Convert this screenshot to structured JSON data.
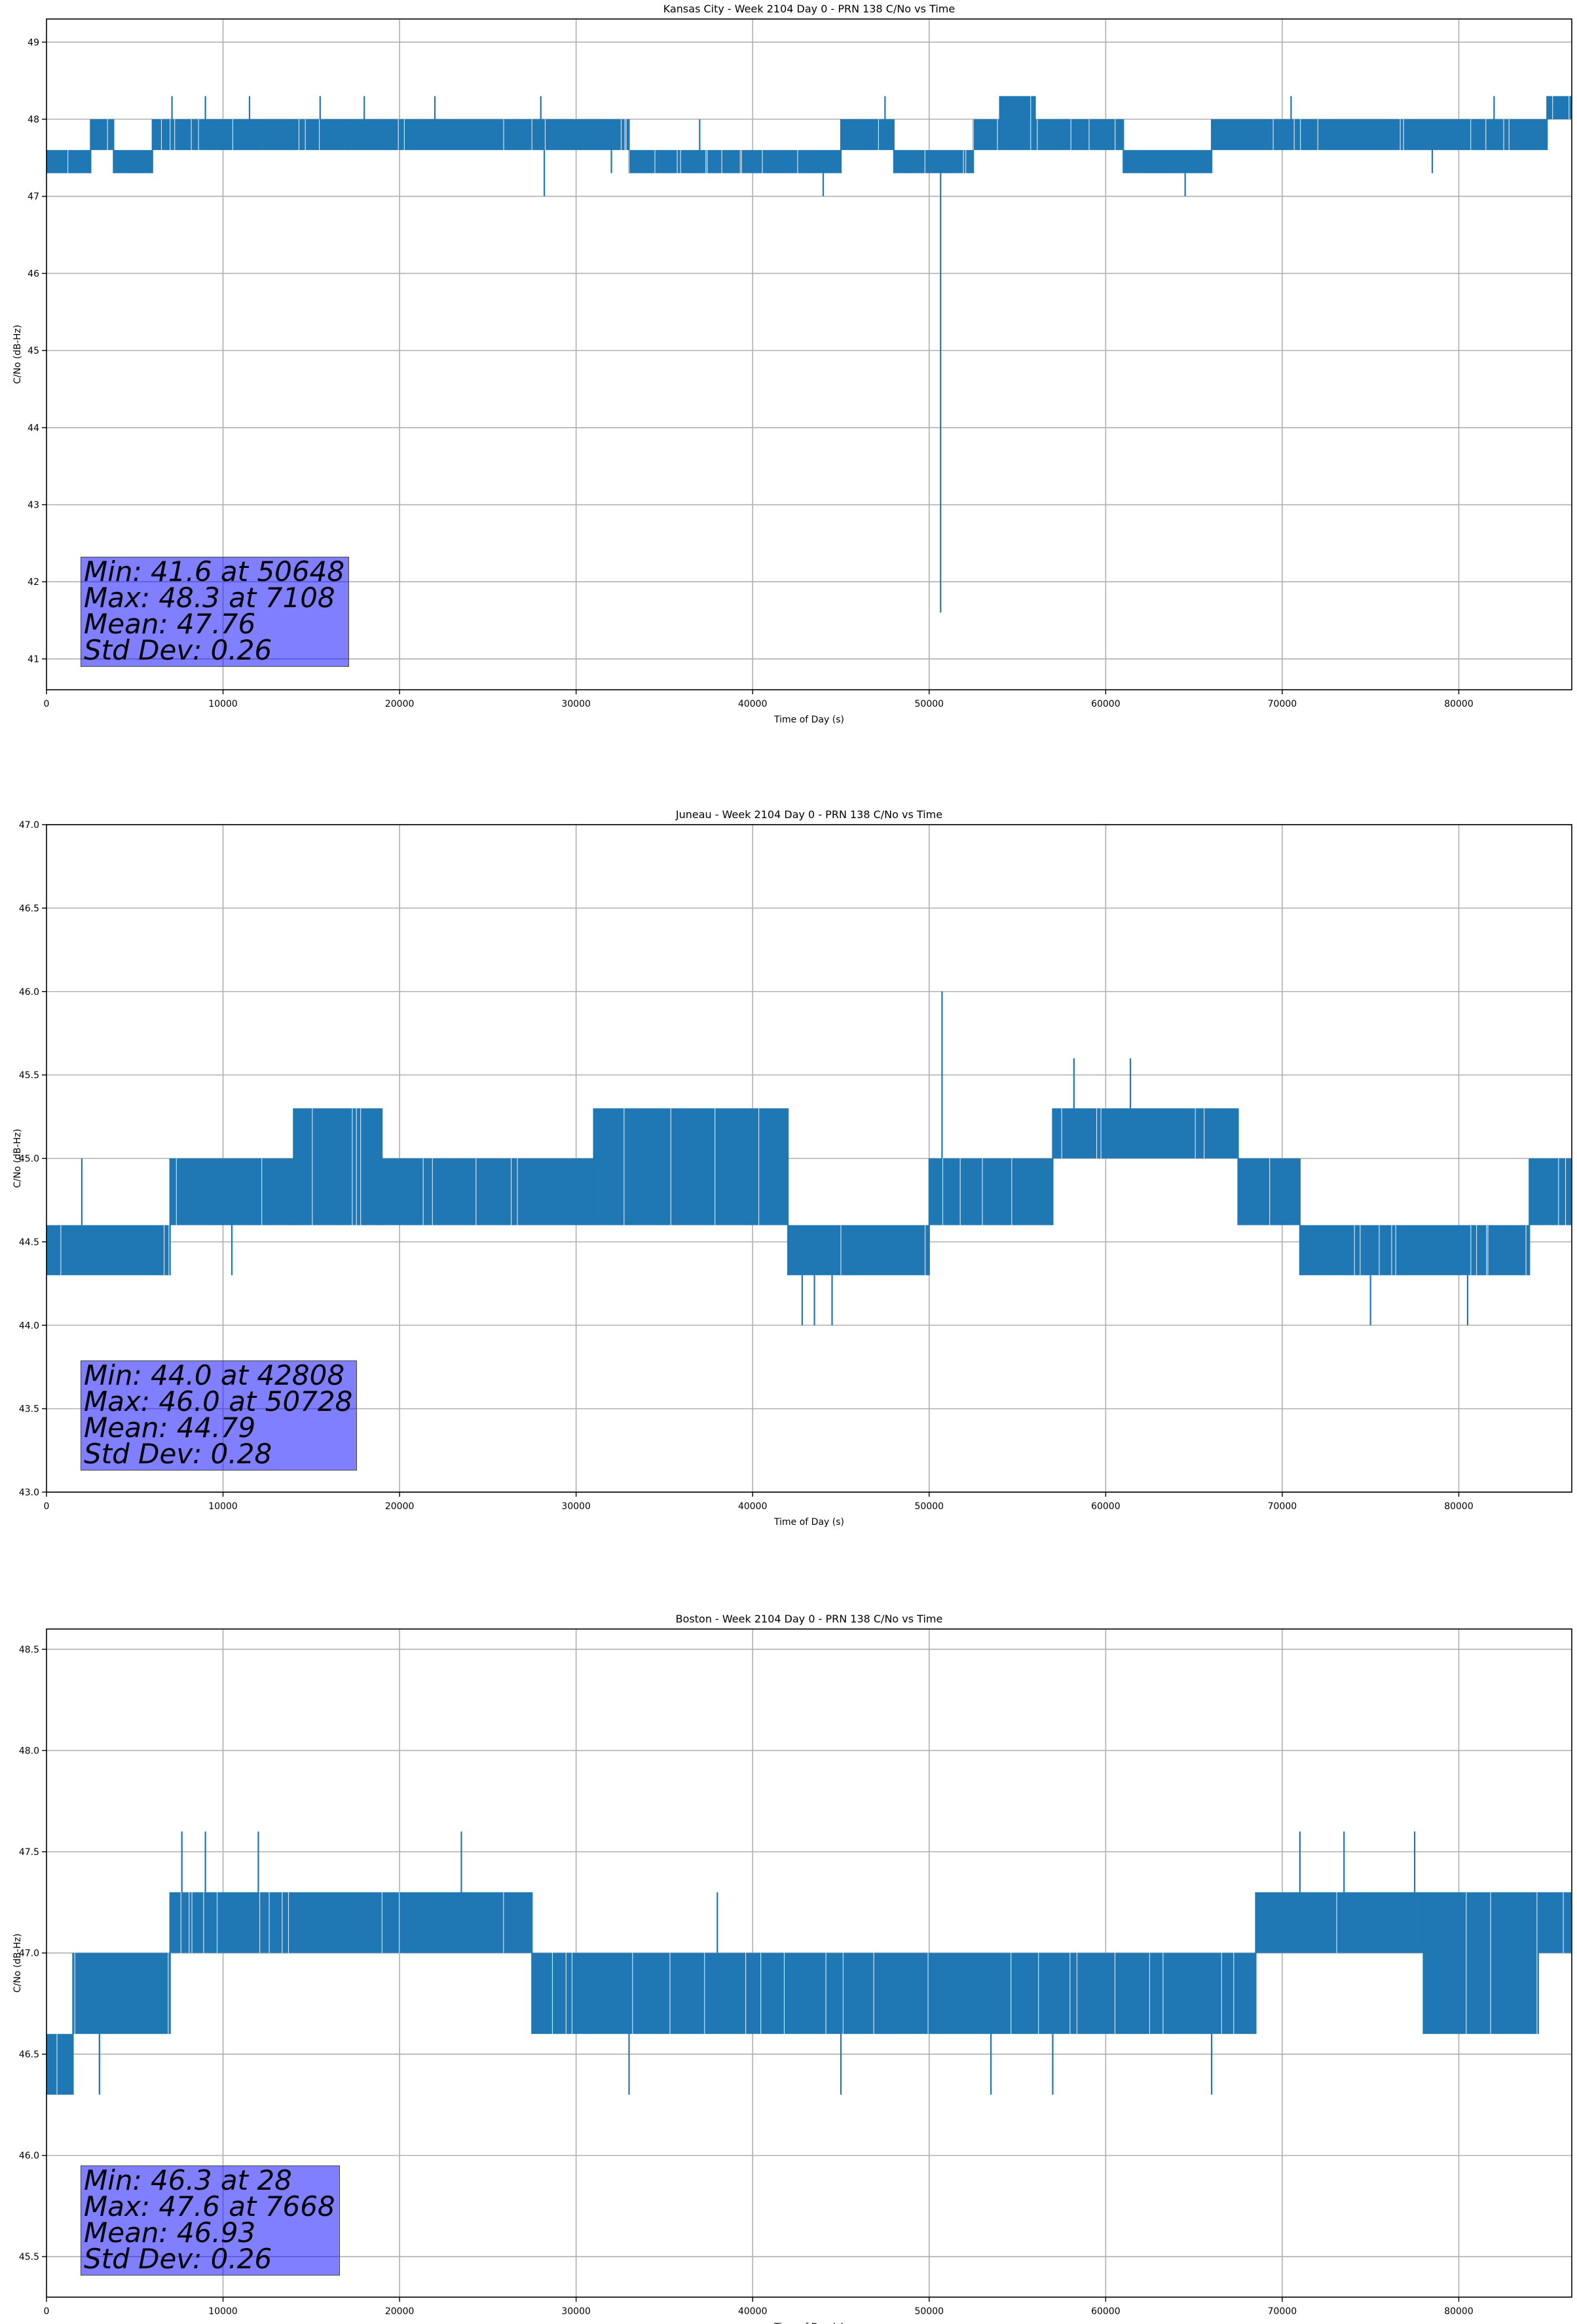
{
  "chart_data": [
    {
      "type": "line",
      "title": "Kansas City - Week 2104 Day 0 - PRN 138 C/No vs Time",
      "xlabel": "Time of Day (s)",
      "ylabel": "C/No (dB-Hz)",
      "xlim": [
        0,
        86400
      ],
      "ylim": [
        40.6,
        49.3
      ],
      "xticks": [
        0,
        10000,
        20000,
        30000,
        40000,
        50000,
        60000,
        70000,
        80000
      ],
      "xtick_labels": [
        "0",
        "10000",
        "20000",
        "30000",
        "40000",
        "50000",
        "60000",
        "70000",
        "80000"
      ],
      "yticks": [
        41,
        42,
        43,
        44,
        45,
        46,
        47,
        48,
        49
      ],
      "ytick_labels": [
        "41",
        "42",
        "43",
        "44",
        "45",
        "46",
        "47",
        "48",
        "49"
      ],
      "grid": true,
      "line_color": "#1f77b4",
      "series": [
        {
          "levels": [
            {
              "x": [
                0,
                2500
              ],
              "low": 47.3,
              "high": 47.6
            },
            {
              "x": [
                2500,
                3800
              ],
              "low": 47.6,
              "high": 48.0
            },
            {
              "x": [
                3800,
                6000
              ],
              "low": 47.3,
              "high": 47.6
            },
            {
              "x": [
                6000,
                7000
              ],
              "low": 47.6,
              "high": 48.0
            },
            {
              "x": [
                7000,
                12000
              ],
              "low": 47.6,
              "high": 48.0
            },
            {
              "x": [
                12000,
                17000
              ],
              "low": 47.6,
              "high": 48.0
            },
            {
              "x": [
                17000,
                33000
              ],
              "low": 47.6,
              "high": 48.0
            },
            {
              "x": [
                33000,
                45000
              ],
              "low": 47.3,
              "high": 47.6
            },
            {
              "x": [
                45000,
                48000
              ],
              "low": 47.6,
              "high": 48.0
            },
            {
              "x": [
                48000,
                52500
              ],
              "low": 47.3,
              "high": 47.6
            },
            {
              "x": [
                52500,
                54000
              ],
              "low": 47.6,
              "high": 48.0
            },
            {
              "x": [
                54000,
                56000
              ],
              "low": 47.6,
              "high": 48.3
            },
            {
              "x": [
                56000,
                61000
              ],
              "low": 47.6,
              "high": 48.0
            },
            {
              "x": [
                61000,
                66000
              ],
              "low": 47.3,
              "high": 47.6
            },
            {
              "x": [
                66000,
                85000
              ],
              "low": 47.6,
              "high": 48.0
            },
            {
              "x": [
                85000,
                86400
              ],
              "low": 48.0,
              "high": 48.3
            }
          ],
          "spikes": [
            {
              "x": 7108,
              "y": 48.3
            },
            {
              "x": 9000,
              "y": 48.3
            },
            {
              "x": 11500,
              "y": 48.3
            },
            {
              "x": 15500,
              "y": 48.3
            },
            {
              "x": 18000,
              "y": 48.3
            },
            {
              "x": 22000,
              "y": 48.3
            },
            {
              "x": 28000,
              "y": 48.3
            },
            {
              "x": 28200,
              "y": 47.0
            },
            {
              "x": 32000,
              "y": 47.3
            },
            {
              "x": 37000,
              "y": 48.0
            },
            {
              "x": 44000,
              "y": 47.0
            },
            {
              "x": 47500,
              "y": 48.3
            },
            {
              "x": 50648,
              "y": 41.6
            },
            {
              "x": 64500,
              "y": 47.0
            },
            {
              "x": 70500,
              "y": 48.3
            },
            {
              "x": 78500,
              "y": 47.3
            },
            {
              "x": 82000,
              "y": 48.3
            }
          ]
        }
      ],
      "stats": [
        "Min: 41.6 at 50648",
        "Max: 48.3 at 7108",
        "Mean: 47.76",
        "Std Dev: 0.26"
      ]
    },
    {
      "type": "line",
      "title": "Juneau - Week 2104 Day 0 - PRN 138 C/No vs Time",
      "xlabel": "Time of Day (s)",
      "ylabel": "C/No (dB-Hz)",
      "xlim": [
        0,
        86400
      ],
      "ylim": [
        43.0,
        47.0
      ],
      "xticks": [
        0,
        10000,
        20000,
        30000,
        40000,
        50000,
        60000,
        70000,
        80000
      ],
      "xtick_labels": [
        "0",
        "10000",
        "20000",
        "30000",
        "40000",
        "50000",
        "60000",
        "70000",
        "80000"
      ],
      "yticks": [
        43.0,
        43.5,
        44.0,
        44.5,
        45.0,
        45.5,
        46.0,
        46.5,
        47.0
      ],
      "ytick_labels": [
        "43.0",
        "43.5",
        "44.0",
        "44.5",
        "45.0",
        "45.5",
        "46.0",
        "46.5",
        "47.0"
      ],
      "grid": true,
      "line_color": "#1f77b4",
      "series": [
        {
          "levels": [
            {
              "x": [
                0,
                7000
              ],
              "low": 44.3,
              "high": 44.6
            },
            {
              "x": [
                7000,
                14000
              ],
              "low": 44.6,
              "high": 45.0
            },
            {
              "x": [
                14000,
                19000
              ],
              "low": 44.6,
              "high": 45.3
            },
            {
              "x": [
                19000,
                31000
              ],
              "low": 44.6,
              "high": 45.0
            },
            {
              "x": [
                31000,
                42000
              ],
              "low": 44.6,
              "high": 45.3
            },
            {
              "x": [
                42000,
                45000
              ],
              "low": 44.3,
              "high": 44.6
            },
            {
              "x": [
                45000,
                50000
              ],
              "low": 44.3,
              "high": 44.6
            },
            {
              "x": [
                50000,
                57000
              ],
              "low": 44.6,
              "high": 45.0
            },
            {
              "x": [
                57000,
                67500
              ],
              "low": 45.0,
              "high": 45.3
            },
            {
              "x": [
                67500,
                71000
              ],
              "low": 44.6,
              "high": 45.0
            },
            {
              "x": [
                71000,
                84000
              ],
              "low": 44.3,
              "high": 44.6
            },
            {
              "x": [
                84000,
                86400
              ],
              "low": 44.6,
              "high": 45.0
            }
          ],
          "spikes": [
            {
              "x": 2000,
              "y": 45.0
            },
            {
              "x": 10500,
              "y": 44.3
            },
            {
              "x": 42808,
              "y": 44.0
            },
            {
              "x": 43500,
              "y": 44.0
            },
            {
              "x": 44500,
              "y": 44.0
            },
            {
              "x": 50728,
              "y": 46.0
            },
            {
              "x": 58200,
              "y": 45.6
            },
            {
              "x": 61400,
              "y": 45.6
            },
            {
              "x": 75000,
              "y": 44.0
            },
            {
              "x": 80500,
              "y": 44.0
            }
          ]
        }
      ],
      "stats": [
        "Min: 44.0 at 42808",
        "Max: 46.0 at 50728",
        "Mean: 44.79",
        "Std Dev: 0.28"
      ]
    },
    {
      "type": "line",
      "title": "Boston - Week 2104 Day 0 - PRN 138 C/No vs Time",
      "xlabel": "Time of Day (s)",
      "ylabel": "C/No (dB-Hz)",
      "xlim": [
        0,
        86400
      ],
      "ylim": [
        45.3,
        48.6
      ],
      "xticks": [
        0,
        10000,
        20000,
        30000,
        40000,
        50000,
        60000,
        70000,
        80000
      ],
      "xtick_labels": [
        "0",
        "10000",
        "20000",
        "30000",
        "40000",
        "50000",
        "60000",
        "70000",
        "80000"
      ],
      "yticks": [
        45.5,
        46.0,
        46.5,
        47.0,
        47.5,
        48.0,
        48.5
      ],
      "ytick_labels": [
        "45.5",
        "46.0",
        "46.5",
        "47.0",
        "47.5",
        "48.0",
        "48.5"
      ],
      "grid": true,
      "line_color": "#1f77b4",
      "series": [
        {
          "levels": [
            {
              "x": [
                0,
                1500
              ],
              "low": 46.3,
              "high": 46.6
            },
            {
              "x": [
                1500,
                7000
              ],
              "low": 46.6,
              "high": 47.0
            },
            {
              "x": [
                7000,
                27500
              ],
              "low": 47.0,
              "high": 47.3
            },
            {
              "x": [
                27500,
                68500
              ],
              "low": 46.6,
              "high": 47.0
            },
            {
              "x": [
                68500,
                78000
              ],
              "low": 47.0,
              "high": 47.3
            },
            {
              "x": [
                78000,
                84500
              ],
              "low": 46.6,
              "high": 47.3
            },
            {
              "x": [
                84500,
                86400
              ],
              "low": 47.0,
              "high": 47.3
            }
          ],
          "spikes": [
            {
              "x": 28,
              "y": 46.3
            },
            {
              "x": 3000,
              "y": 46.3
            },
            {
              "x": 7668,
              "y": 47.6
            },
            {
              "x": 9000,
              "y": 47.6
            },
            {
              "x": 12000,
              "y": 47.6
            },
            {
              "x": 23500,
              "y": 47.6
            },
            {
              "x": 33000,
              "y": 46.3
            },
            {
              "x": 38000,
              "y": 47.3
            },
            {
              "x": 45000,
              "y": 46.3
            },
            {
              "x": 53500,
              "y": 46.3
            },
            {
              "x": 57000,
              "y": 46.3
            },
            {
              "x": 66000,
              "y": 46.3
            },
            {
              "x": 71000,
              "y": 47.6
            },
            {
              "x": 73500,
              "y": 47.6
            },
            {
              "x": 77500,
              "y": 47.6
            }
          ]
        }
      ],
      "stats": [
        "Min: 46.3 at 28",
        "Max: 47.6 at 7668",
        "Mean: 46.93",
        "Std Dev: 0.26"
      ]
    }
  ]
}
